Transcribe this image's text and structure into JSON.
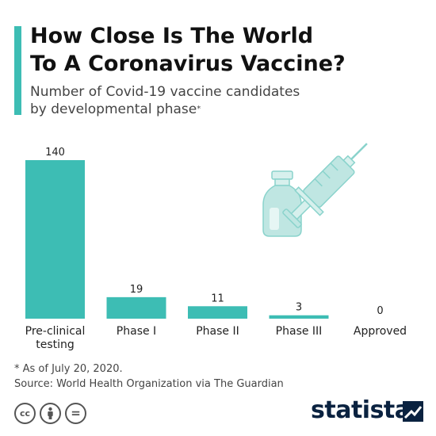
{
  "header": {
    "title_line1": "How Close Is The World",
    "title_line2": "To A Coronavirus Vaccine?",
    "subtitle_line1": "Number of Covid-19 vaccine candidates",
    "subtitle_line2": "by developmental phase",
    "subtitle_mark": "*"
  },
  "chart_data": {
    "type": "bar",
    "categories": [
      "Pre-clinical testing",
      "Phase I",
      "Phase II",
      "Phase III",
      "Approved"
    ],
    "category_lines": [
      [
        "Pre-clinical",
        "testing"
      ],
      [
        "Phase I"
      ],
      [
        "Phase II"
      ],
      [
        "Phase III"
      ],
      [
        "Approved"
      ]
    ],
    "values": [
      140,
      19,
      11,
      3,
      0
    ],
    "ylim": [
      0,
      140
    ],
    "grid": false,
    "bar_color": "#3dbdb4",
    "data_labels": true
  },
  "footer": {
    "note": "* As of July 20, 2020.",
    "source": "Source: World Health Organization via The Guardian",
    "brand": "statista",
    "license_icons": [
      "cc-icon",
      "attribution-icon",
      "no-derivatives-icon"
    ],
    "cc_label": "cc",
    "nd_label": "="
  },
  "colors": {
    "accent": "#3dbdb4",
    "brand": "#0a2240",
    "illustration": "#bfe6e2"
  }
}
